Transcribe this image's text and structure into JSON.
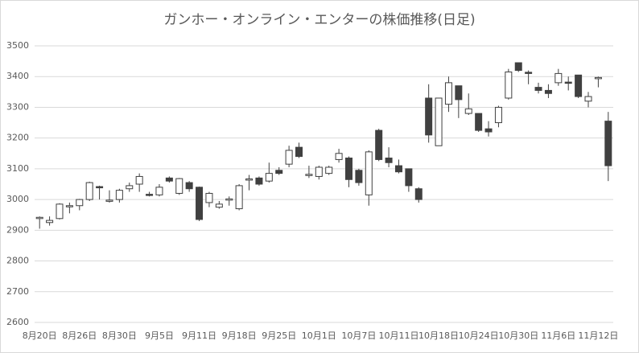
{
  "chart_data": {
    "type": "candlestick",
    "title": "ガンホー・オンライン・エンターの株価推移(日足)",
    "categories": [
      "8月20日",
      null,
      null,
      null,
      "8月26日",
      null,
      null,
      null,
      "8月30日",
      null,
      null,
      null,
      "9月5日",
      null,
      null,
      null,
      "9月11日",
      null,
      null,
      null,
      "9月18日",
      null,
      null,
      null,
      "9月25日",
      null,
      null,
      null,
      "10月1日",
      null,
      null,
      null,
      "10月7日",
      null,
      null,
      null,
      "10月11日",
      null,
      null,
      null,
      "10月18日",
      null,
      null,
      null,
      "10月24日",
      null,
      null,
      null,
      "10月30日",
      null,
      null,
      null,
      "11月6日",
      null,
      null,
      null,
      "11月12日",
      null
    ],
    "open": [
      2938,
      2925,
      2938,
      2978,
      2980,
      3000,
      3042,
      2995,
      3000,
      3035,
      3050,
      3017,
      3015,
      3070,
      3020,
      3055,
      3040,
      2990,
      2975,
      2998,
      2970,
      3065,
      3070,
      3060,
      3095,
      3115,
      3170,
      3078,
      3075,
      3085,
      3130,
      3135,
      3095,
      3015,
      3225,
      3135,
      3110,
      3100,
      3035,
      3330,
      3175,
      3310,
      3370,
      3280,
      3280,
      3230,
      3250,
      3330,
      3445,
      3414,
      3365,
      3355,
      3380,
      3382,
      3405,
      3320,
      3393,
      3255
    ],
    "high": [
      2945,
      2945,
      2988,
      2990,
      3002,
      3058,
      3045,
      3030,
      3035,
      3055,
      3085,
      3025,
      3050,
      3075,
      3070,
      3060,
      3042,
      3025,
      2995,
      3010,
      3050,
      3080,
      3075,
      3120,
      3105,
      3175,
      3185,
      3110,
      3110,
      3110,
      3165,
      3140,
      3100,
      3160,
      3230,
      3170,
      3130,
      3100,
      3040,
      3375,
      3330,
      3400,
      3370,
      3345,
      3280,
      3255,
      3305,
      3425,
      3445,
      3420,
      3380,
      3375,
      3425,
      3400,
      3405,
      3350,
      3400,
      3285
    ],
    "low": [
      2905,
      2915,
      2935,
      2955,
      2965,
      2995,
      3000,
      2990,
      2990,
      3025,
      3025,
      3010,
      3010,
      3055,
      3015,
      3025,
      2930,
      2975,
      2970,
      2980,
      2965,
      3030,
      3045,
      3055,
      3080,
      3105,
      3135,
      3070,
      3065,
      3080,
      3120,
      3040,
      3045,
      2980,
      3125,
      3105,
      3085,
      3025,
      2990,
      3185,
      3175,
      3285,
      3265,
      3275,
      3220,
      3205,
      3235,
      3325,
      3415,
      3375,
      3345,
      3330,
      3370,
      3355,
      3330,
      3300,
      3365,
      3060
    ],
    "close": [
      2942,
      2932,
      2985,
      2980,
      3000,
      3055,
      3038,
      2998,
      3030,
      3045,
      3075,
      3014,
      3040,
      3060,
      3068,
      3035,
      2935,
      3020,
      2985,
      3002,
      3045,
      3067,
      3050,
      3085,
      3085,
      3160,
      3140,
      3082,
      3105,
      3105,
      3150,
      3065,
      3055,
      3155,
      3130,
      3120,
      3090,
      3045,
      3000,
      3210,
      3330,
      3380,
      3325,
      3295,
      3225,
      3220,
      3300,
      3415,
      3420,
      3410,
      3355,
      3345,
      3410,
      3378,
      3335,
      3335,
      3397,
      3110
    ],
    "up_color": "#ffffff",
    "down_color": "#404040",
    "ylim": [
      2600,
      3500
    ],
    "yticks": [
      2600,
      2700,
      2800,
      2900,
      3000,
      3100,
      3200,
      3300,
      3400,
      3500
    ],
    "grid": true
  }
}
